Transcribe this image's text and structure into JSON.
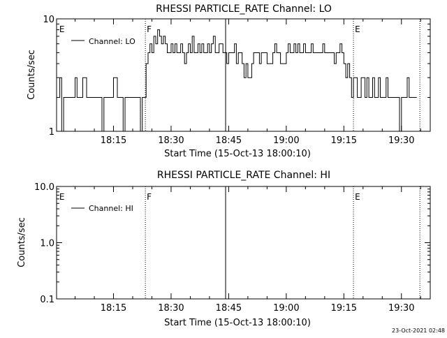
{
  "chart_data": [
    {
      "type": "line",
      "title": "RHESSI PARTICLE_RATE Channel: LO",
      "xlabel": "Start Time (15-Oct-13 18:00:10)",
      "ylabel": "Counts/sec",
      "yscale": "log",
      "ylim": [
        1,
        10
      ],
      "ytick_labels": [
        "1",
        "10"
      ],
      "ytick_values": [
        1,
        10
      ],
      "xlim_minutes": [
        0.17,
        97.5
      ],
      "xtick_labels": [
        "18:15",
        "18:30",
        "18:45",
        "19:00",
        "19:15",
        "19:30"
      ],
      "xtick_values": [
        15,
        30,
        45,
        60,
        75,
        90
      ],
      "legend": {
        "label": "Channel: LO",
        "placement": "top-left"
      },
      "grid": false,
      "markers": [
        {
          "time": 0.5,
          "label": "E",
          "style": "none"
        },
        {
          "time": 23.3,
          "label": "F",
          "style": "dotted"
        },
        {
          "time": 44.2,
          "label": "",
          "style": "solid"
        },
        {
          "time": 77.5,
          "label": "E",
          "style": "dotted"
        },
        {
          "time": 94.8,
          "label": "",
          "style": "dotted"
        }
      ],
      "series": [
        {
          "step": true,
          "x": [
            0.2,
            1.0,
            1.5,
            2.0,
            3.0,
            4.0,
            5.0,
            5.5,
            6.0,
            7.0,
            8.0,
            9.0,
            10.0,
            11.0,
            12.0,
            12.5,
            13.0,
            14.0,
            15.0,
            16.0,
            17.0,
            17.5,
            18.0,
            18.5,
            19.0,
            20.0,
            21.0,
            22.0,
            22.5,
            23.0,
            23.5,
            24.0,
            24.5,
            25.0,
            25.5,
            26.0,
            26.5,
            27.0,
            27.5,
            28.0,
            28.5,
            29.0,
            29.5,
            30.0,
            30.5,
            31.0,
            31.5,
            32.0,
            32.5,
            33.0,
            33.5,
            34.0,
            34.5,
            35.0,
            35.5,
            36.0,
            36.5,
            37.0,
            37.5,
            38.0,
            38.5,
            39.0,
            39.5,
            40.0,
            40.5,
            41.0,
            41.5,
            42.0,
            42.5,
            43.0,
            43.5,
            44.0,
            44.5,
            45.0,
            45.5,
            46.0,
            46.5,
            47.0,
            47.5,
            48.0,
            48.5,
            49.0,
            49.5,
            50.0,
            50.5,
            51.0,
            51.5,
            52.0,
            52.5,
            53.0,
            53.5,
            54.0,
            54.5,
            55.0,
            55.5,
            56.0,
            56.5,
            57.0,
            57.5,
            58.0,
            58.5,
            59.0,
            59.5,
            60.0,
            60.5,
            61.0,
            61.5,
            62.0,
            62.5,
            63.0,
            63.5,
            64.0,
            64.5,
            65.0,
            65.5,
            66.0,
            66.5,
            67.0,
            67.5,
            68.0,
            68.5,
            69.0,
            69.5,
            70.0,
            70.5,
            71.0,
            71.5,
            72.0,
            72.5,
            73.0,
            73.5,
            74.0,
            74.5,
            75.0,
            75.5,
            76.0,
            76.5,
            77.0,
            77.5,
            78.0,
            78.5,
            79.0,
            79.5,
            80.0,
            80.5,
            81.0,
            81.5,
            82.0,
            82.5,
            83.0,
            83.5,
            84.0,
            84.5,
            85.0,
            85.5,
            86.0,
            86.5,
            87.0,
            87.5,
            88.0,
            88.5,
            89.0,
            89.5,
            90.0,
            90.5,
            91.0,
            91.5,
            92.0,
            92.5,
            93.0,
            93.5
          ],
          "values": [
            2,
            3,
            1,
            2,
            2,
            2,
            3,
            2,
            2,
            3,
            2,
            2,
            2,
            2,
            1,
            2,
            2,
            2,
            3,
            2,
            2,
            1,
            2,
            2,
            2,
            2,
            2,
            1,
            2,
            2,
            4,
            5,
            6,
            5,
            7,
            6,
            8,
            7,
            6,
            7,
            6,
            5,
            5,
            6,
            5,
            6,
            5,
            5,
            6,
            5,
            4,
            5,
            6,
            5,
            7,
            5,
            5,
            6,
            5,
            6,
            5,
            5,
            6,
            5,
            6,
            7,
            5,
            5,
            6,
            6,
            5,
            5,
            4,
            5,
            5,
            5,
            6,
            4,
            5,
            5,
            4,
            3,
            4,
            3,
            3,
            4,
            5,
            5,
            5,
            4,
            5,
            5,
            5,
            4,
            4,
            4,
            5,
            6,
            5,
            5,
            4,
            4,
            4,
            5,
            6,
            5,
            5,
            6,
            5,
            6,
            5,
            5,
            6,
            5,
            5,
            5,
            6,
            5,
            5,
            5,
            5,
            5,
            6,
            5,
            5,
            5,
            5,
            5,
            4,
            5,
            5,
            6,
            5,
            4,
            3,
            4,
            3,
            2,
            3,
            3,
            2,
            2,
            3,
            3,
            2,
            3,
            2,
            2,
            3,
            2,
            2,
            3,
            2,
            2,
            2,
            3,
            2,
            2,
            2,
            2,
            2,
            2,
            1,
            2,
            2,
            2,
            3,
            2,
            2,
            2,
            2
          ]
        }
      ]
    },
    {
      "type": "line",
      "title": "RHESSI PARTICLE_RATE Channel: HI",
      "xlabel": "Start Time (15-Oct-13 18:00:10)",
      "ylabel": "Counts/sec",
      "yscale": "log",
      "ylim": [
        0.1,
        10
      ],
      "ytick_labels": [
        "0.1",
        "1.0",
        "10.0"
      ],
      "ytick_values": [
        0.1,
        1,
        10
      ],
      "xlim_minutes": [
        0.17,
        97.5
      ],
      "xtick_labels": [
        "18:15",
        "18:30",
        "18:45",
        "19:00",
        "19:15",
        "19:30"
      ],
      "xtick_values": [
        15,
        30,
        45,
        60,
        75,
        90
      ],
      "legend": {
        "label": "Channel: HI",
        "placement": "top-left"
      },
      "grid": false,
      "markers": [
        {
          "time": 0.5,
          "label": "E",
          "style": "none"
        },
        {
          "time": 23.3,
          "label": "F",
          "style": "dotted"
        },
        {
          "time": 44.2,
          "label": "",
          "style": "solid"
        },
        {
          "time": 77.5,
          "label": "E",
          "style": "dotted"
        },
        {
          "time": 94.8,
          "label": "",
          "style": "dotted"
        }
      ],
      "series": [
        {
          "step": true,
          "x": [],
          "values": []
        }
      ]
    }
  ],
  "footer": {
    "timestamp": "23-Oct-2021 02:48"
  }
}
